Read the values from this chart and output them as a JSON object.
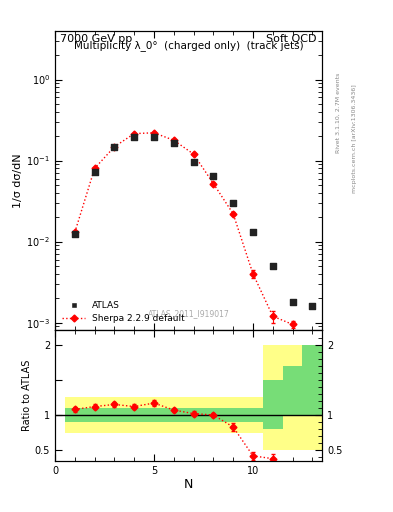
{
  "title_left": "7000 GeV pp",
  "title_right": "Soft QCD",
  "plot_title": "Multiplicity λ_0°  (charged only)  (track jets)",
  "ylabel_main": "1/σ dσ/dN",
  "ylabel_ratio": "Ratio to ATLAS",
  "xlabel": "N",
  "watermark": "ATLAS_2011_I919017",
  "right_label_top": "Rivet 3.1.10, 2.7M events",
  "right_label_bot": "mcplots.cern.ch [arXiv:1306.3436]",
  "atlas_x": [
    1,
    2,
    3,
    4,
    5,
    6,
    7,
    8,
    9,
    10,
    11,
    12,
    13
  ],
  "atlas_y": [
    0.0125,
    0.073,
    0.145,
    0.195,
    0.195,
    0.163,
    0.097,
    0.064,
    0.03,
    0.013,
    0.005,
    0.0018,
    0.0016
  ],
  "sherpa_x": [
    1,
    2,
    3,
    4,
    5,
    6,
    7,
    8,
    9,
    10,
    11,
    12
  ],
  "sherpa_y": [
    0.013,
    0.08,
    0.148,
    0.215,
    0.22,
    0.178,
    0.12,
    0.052,
    0.022,
    0.004,
    0.0012,
    0.00095
  ],
  "sherpa_yerr_lo": [
    0.0005,
    0.002,
    0.004,
    0.005,
    0.006,
    0.005,
    0.004,
    0.002,
    0.001,
    0.0004,
    0.0002,
    0.0001
  ],
  "sherpa_yerr_hi": [
    0.0005,
    0.002,
    0.004,
    0.005,
    0.006,
    0.005,
    0.004,
    0.002,
    0.001,
    0.0004,
    0.0002,
    0.0001
  ],
  "ratio_x": [
    1,
    2,
    3,
    4,
    5,
    6,
    7,
    8,
    9,
    10,
    11
  ],
  "ratio_y": [
    1.08,
    1.12,
    1.15,
    1.12,
    1.17,
    1.07,
    1.02,
    1.0,
    0.83,
    0.42,
    0.38
  ],
  "ratio_yerr": [
    0.04,
    0.03,
    0.03,
    0.03,
    0.04,
    0.03,
    0.03,
    0.03,
    0.05,
    0.06,
    0.07
  ],
  "band_edges": [
    0.5,
    1.5,
    2.5,
    3.5,
    4.5,
    5.5,
    6.5,
    7.5,
    8.5,
    9.5,
    10.5,
    11.5,
    12.5,
    13.5
  ],
  "band_yellow_lo": [
    0.75,
    0.75,
    0.75,
    0.75,
    0.75,
    0.75,
    0.75,
    0.75,
    0.75,
    0.75,
    0.5,
    0.5,
    0.5
  ],
  "band_yellow_hi": [
    1.25,
    1.25,
    1.25,
    1.25,
    1.25,
    1.25,
    1.25,
    1.25,
    1.25,
    1.25,
    2.0,
    2.0,
    2.0
  ],
  "band_green_lo": [
    0.9,
    0.9,
    0.9,
    0.9,
    0.9,
    0.9,
    0.9,
    0.9,
    0.9,
    0.9,
    0.8,
    1.0,
    1.0
  ],
  "band_green_hi": [
    1.1,
    1.1,
    1.1,
    1.1,
    1.1,
    1.1,
    1.1,
    1.1,
    1.1,
    1.1,
    1.5,
    1.7,
    2.0
  ],
  "main_ylim": [
    0.0008,
    4.0
  ],
  "ratio_ylim": [
    0.35,
    2.2
  ],
  "ratio_yticks": [
    0.5,
    1.0,
    1.5,
    2.0
  ],
  "ratio_yticklabels": [
    "0.5",
    "1",
    "",
    "2"
  ],
  "ratio_yticks_r": [
    0.5,
    1.0,
    2.0
  ],
  "ratio_yticklabels_r": [
    "0.5",
    "1",
    "2"
  ],
  "xlim": [
    0.5,
    13.5
  ],
  "xticks": [
    0,
    5,
    10
  ],
  "atlas_color": "#222222",
  "sherpa_color": "red",
  "green_color": "#77dd77",
  "yellow_color": "#ffff88",
  "bg_color": "white"
}
